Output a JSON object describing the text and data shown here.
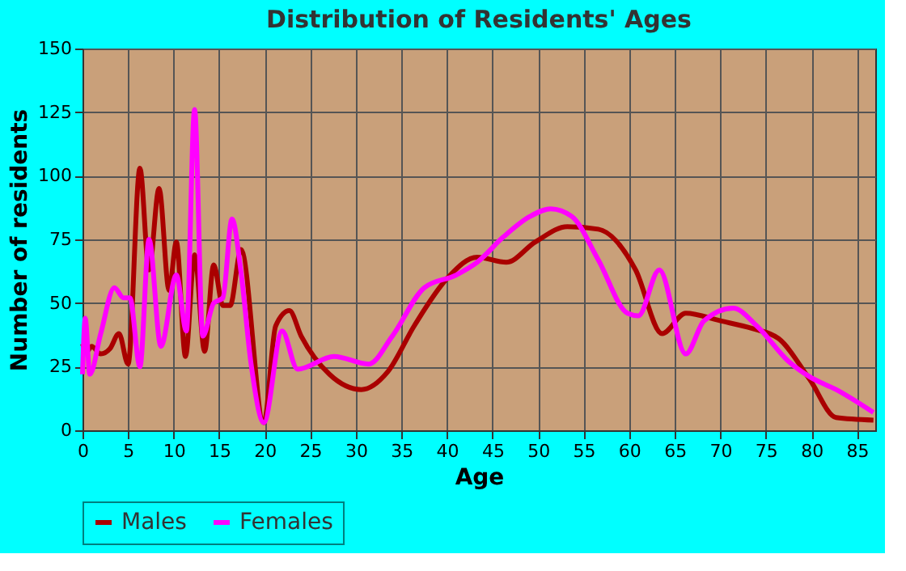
{
  "chart_data": {
    "type": "line",
    "title": "Distribution of Residents' Ages",
    "xlabel": "Age",
    "ylabel": "Number of residents",
    "xlim": [
      0,
      87
    ],
    "xticks": [
      0,
      5,
      10,
      15,
      20,
      25,
      30,
      35,
      40,
      45,
      50,
      55,
      60,
      65,
      70,
      75,
      80,
      85
    ],
    "ylim": [
      0,
      150
    ],
    "yticks": [
      0,
      25,
      50,
      75,
      100,
      125,
      150
    ],
    "grid": true,
    "legend": "bottom",
    "marker": "none",
    "line_style": "solid",
    "series": [
      {
        "name": "Males",
        "color": "#aa0000",
        "x": [
          0,
          0.5,
          1,
          2,
          3,
          4,
          5,
          6.3,
          7.3,
          8.4,
          9.5,
          10.3,
          11.3,
          12.3,
          13.4,
          14.4,
          15.4,
          16.2,
          17.4,
          19.9,
          21.2,
          22.7,
          24,
          27.1,
          30.6,
          33.5,
          36.4,
          40.1,
          43.3,
          46.5,
          49.7,
          53.2,
          56.6,
          60.7,
          63.6,
          66.2,
          70,
          73.5,
          76.4,
          79.8,
          82.7,
          86.8
        ],
        "values": [
          34,
          31,
          33,
          30,
          32,
          38,
          26,
          103,
          63,
          95,
          55,
          74,
          29,
          69,
          31,
          65,
          49,
          49,
          71,
          3,
          41,
          47,
          37,
          22,
          16,
          23,
          41,
          60,
          68,
          66,
          74,
          80,
          79,
          63,
          38,
          46,
          43,
          40,
          36,
          20,
          5,
          4
        ]
      },
      {
        "name": "Females",
        "color": "#ff00ff",
        "x": [
          0,
          0.3,
          0.8,
          2,
          3.5,
          4.5,
          5.2,
          6.3,
          7.3,
          8.6,
          10.3,
          11.4,
          12.3,
          13.2,
          14.4,
          15.4,
          16.4,
          17.4,
          18.5,
          19.9,
          21.9,
          23.6,
          27.6,
          31.4,
          34,
          37.5,
          41,
          43.3,
          46.2,
          49.1,
          51.4,
          53.7,
          56.6,
          59.8,
          61,
          63.3,
          66.2,
          68.2,
          71.4,
          74,
          77.5,
          79.8,
          82.7,
          86.8
        ],
        "values": [
          22,
          44,
          22,
          38,
          56,
          52,
          52,
          25,
          75,
          33,
          61,
          39,
          126,
          37,
          50,
          52,
          83,
          62,
          26,
          3,
          39,
          24,
          29,
          26,
          37,
          56,
          61,
          66,
          76,
          84,
          87,
          84,
          67,
          46,
          45,
          63,
          30,
          43,
          48,
          41,
          27,
          21,
          16,
          7
        ]
      }
    ]
  }
}
